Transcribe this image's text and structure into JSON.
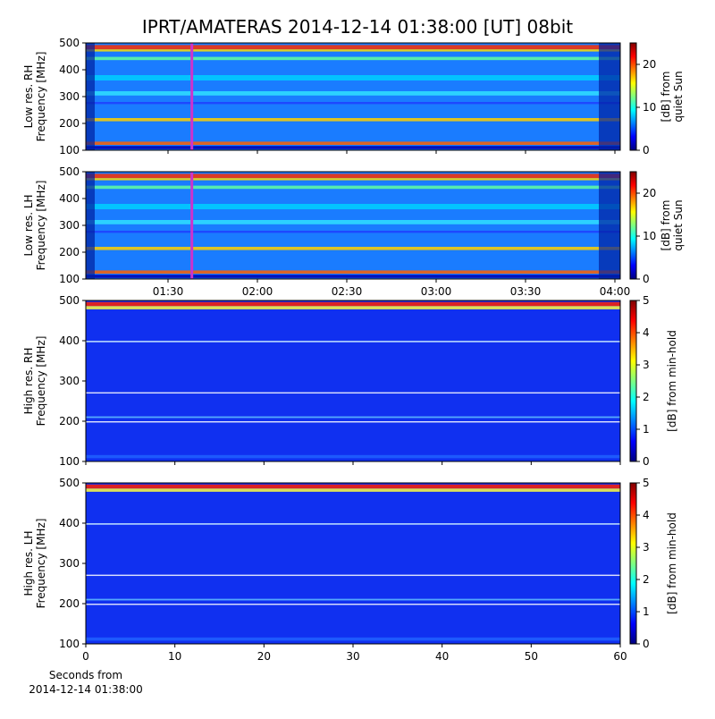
{
  "title": "IPRT/AMATERAS 2014-12-14 01:38:00 [UT]   08bit",
  "chart_data": [
    {
      "type": "spectrogram",
      "ylabel": [
        "Low res. RH",
        "Frequency [MHz]"
      ],
      "ylim": [
        100,
        500
      ],
      "yticks": [
        100,
        200,
        300,
        400,
        500
      ],
      "xlim": [
        62.4,
        241.8
      ],
      "xticks": [
        {
          "value": 90,
          "label": "01:30"
        },
        {
          "value": 120,
          "label": "02:00"
        },
        {
          "value": 150,
          "label": "02:30"
        },
        {
          "value": 180,
          "label": "03:00"
        },
        {
          "value": 210,
          "label": "03:30"
        },
        {
          "value": 240,
          "label": "04:00"
        }
      ],
      "show_xticklabels": false,
      "marker_x": 98,
      "marker_color": "#cc33cc",
      "colorbar": {
        "label": [
          "[dB] from",
          "quiet Sun"
        ],
        "lim": [
          0,
          25
        ],
        "ticks": [
          0,
          10,
          20
        ]
      }
    },
    {
      "type": "spectrogram",
      "ylabel": [
        "Low res. LH",
        "Frequency [MHz]"
      ],
      "ylim": [
        100,
        500
      ],
      "yticks": [
        100,
        200,
        300,
        400,
        500
      ],
      "xlim": [
        62.4,
        241.8
      ],
      "xticks": [
        {
          "value": 90,
          "label": "01:30"
        },
        {
          "value": 120,
          "label": "02:00"
        },
        {
          "value": 150,
          "label": "02:30"
        },
        {
          "value": 180,
          "label": "03:00"
        },
        {
          "value": 210,
          "label": "03:30"
        },
        {
          "value": 240,
          "label": "04:00"
        }
      ],
      "show_xticklabels": true,
      "marker_x": 98,
      "marker_color": "#cc33cc",
      "colorbar": {
        "label": [
          "[dB] from",
          "quiet Sun"
        ],
        "lim": [
          0,
          25
        ],
        "ticks": [
          0,
          10,
          20
        ]
      }
    },
    {
      "type": "spectrogram",
      "ylabel": [
        "High res. RH",
        "Frequency [MHz]"
      ],
      "ylim": [
        100,
        500
      ],
      "yticks": [
        100,
        200,
        300,
        400,
        500
      ],
      "xlim": [
        0,
        60
      ],
      "xticks": [
        0,
        10,
        20,
        30,
        40,
        50,
        60
      ],
      "show_xticklabels": false,
      "colorbar": {
        "label": [
          "[dB] from min-hold"
        ],
        "lim": [
          0,
          5
        ],
        "ticks": [
          0,
          1,
          2,
          3,
          4,
          5
        ]
      }
    },
    {
      "type": "spectrogram",
      "ylabel": [
        "High res. LH",
        "Frequency [MHz]"
      ],
      "ylim": [
        100,
        500
      ],
      "yticks": [
        100,
        200,
        300,
        400,
        500
      ],
      "xlim": [
        0,
        60
      ],
      "xticks": [
        0,
        10,
        20,
        30,
        40,
        50,
        60
      ],
      "show_xticklabels": true,
      "xlabel": [
        "Seconds from",
        "2014-12-14 01:38:00"
      ],
      "colorbar": {
        "label": [
          "[dB] from min-hold"
        ],
        "lim": [
          0,
          5
        ],
        "ticks": [
          0,
          1,
          2,
          3,
          4,
          5
        ]
      }
    }
  ]
}
